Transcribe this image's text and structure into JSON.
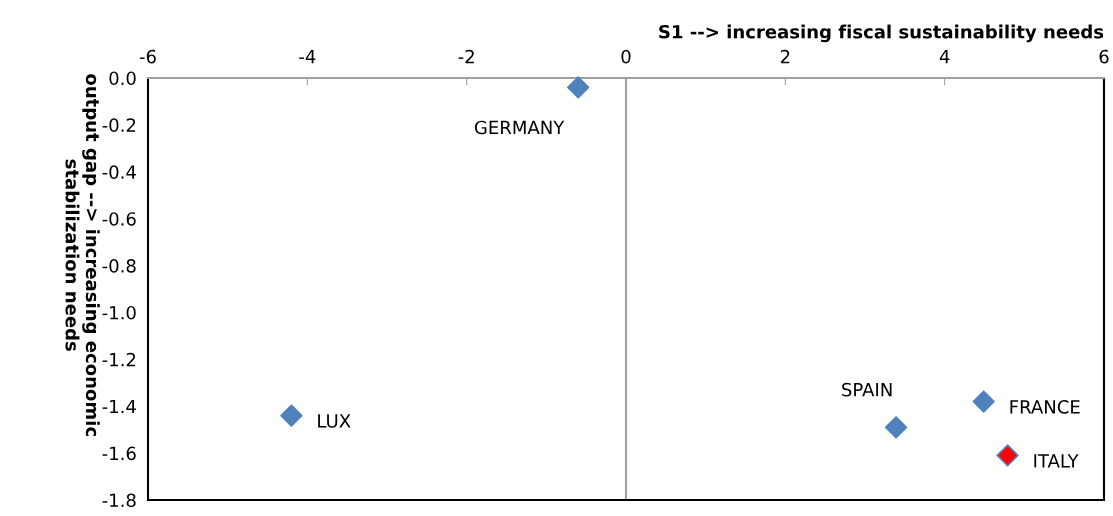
{
  "chart_data": {
    "type": "scatter",
    "xlabel": "S1 --> increasing fiscal sustainability needs",
    "ylabel": "output gap --> increasing economic\nstabilization needs",
    "x": [
      -0.6,
      -4.2,
      3.39,
      4.49,
      4.79
    ],
    "values": [
      -0.04,
      -1.44,
      -1.49,
      -1.38,
      -1.61
    ],
    "colors": [
      "#4f81bd",
      "#4f81bd",
      "#4f81bd",
      "#4f81bd",
      "#ff0000"
    ],
    "marker": "diamond",
    "annotations": [
      {
        "text": "GERMANY",
        "x": -0.6,
        "y": -0.04
      },
      {
        "text": "LUX",
        "x": -4.2,
        "y": -1.44
      },
      {
        "text": "SPAIN",
        "x": 3.39,
        "y": -1.49
      },
      {
        "text": "FRANCE",
        "x": 4.49,
        "y": -1.38
      },
      {
        "text": "ITALY",
        "x": 4.79,
        "y": -1.61
      }
    ],
    "xlim": [
      -6,
      6
    ],
    "xticks": [
      -6,
      -4,
      -2,
      0,
      2,
      4,
      6
    ],
    "ylim": [
      -1.8,
      0
    ],
    "yticks": [
      {
        "value": 0,
        "label": "0.0"
      },
      {
        "value": -0.2,
        "label": "-0.2"
      },
      {
        "value": -0.4,
        "label": "-0.4"
      },
      {
        "value": -0.6,
        "label": "-0.6"
      },
      {
        "value": -0.8,
        "label": "-0.8"
      },
      {
        "value": -1.0,
        "label": "-1.0"
      },
      {
        "value": -1.2,
        "label": "-1.2"
      },
      {
        "value": -1.4,
        "label": "-1.4"
      },
      {
        "value": -1.6,
        "label": "-1.6"
      },
      {
        "value": -1.8,
        "label": "-1.8"
      }
    ],
    "ref_lines": [
      {
        "axis": "x",
        "value": 0,
        "color": "#a0a0a0"
      }
    ],
    "grid": false,
    "legend": false
  }
}
